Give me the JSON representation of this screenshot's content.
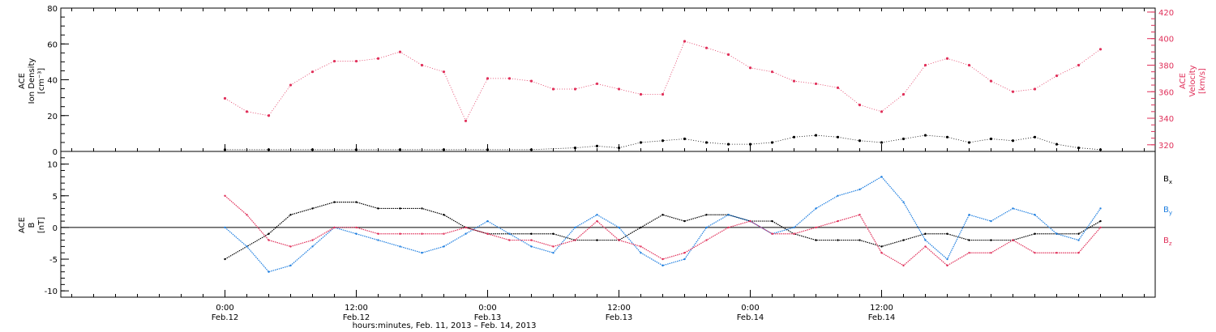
{
  "chart_data": [
    {
      "type": "scatter",
      "panel": "top",
      "ylabel_left": [
        "ACE",
        "Ion Density",
        "[cm⁻³]"
      ],
      "ylabel_right": [
        "ACE",
        "Velocity",
        "[km/s]"
      ],
      "ylim_left": [
        0,
        80
      ],
      "ylim_right": [
        315,
        423
      ],
      "yticks_left": [
        "0",
        "20",
        "40",
        "60",
        "80"
      ],
      "yticks_right": [
        "320",
        "340",
        "360",
        "380",
        "400",
        "420"
      ],
      "series": [
        {
          "color": "#000000",
          "axis": "left",
          "x": [
            0,
            4,
            8,
            12,
            16,
            20,
            24,
            28,
            32,
            34,
            36,
            38,
            40,
            42,
            44,
            46,
            48,
            50,
            52,
            54,
            56,
            58,
            60,
            62,
            64,
            66,
            68,
            70,
            72,
            74,
            76,
            78,
            80
          ],
          "values": [
            1,
            1,
            1,
            1,
            1,
            1,
            1,
            1,
            2,
            3,
            2,
            5,
            6,
            7,
            5,
            4,
            4,
            5,
            8,
            9,
            8,
            6,
            5,
            7,
            9,
            8,
            5,
            7,
            6,
            8,
            4,
            2,
            1
          ]
        },
        {
          "color": "#e0305a",
          "axis": "right",
          "x": [
            0,
            2,
            4,
            6,
            8,
            10,
            12,
            14,
            16,
            18,
            20,
            22,
            24,
            26,
            28,
            30,
            32,
            34,
            36,
            38,
            40,
            42,
            44,
            46,
            48,
            50,
            52,
            54,
            56,
            58,
            60,
            62,
            64,
            66,
            68,
            70,
            72,
            74,
            76,
            78,
            80
          ],
          "values": [
            355,
            345,
            342,
            365,
            375,
            383,
            383,
            385,
            390,
            380,
            375,
            338,
            370,
            370,
            368,
            362,
            362,
            366,
            362,
            358,
            358,
            398,
            393,
            388,
            378,
            375,
            368,
            366,
            363,
            350,
            345,
            358,
            380,
            385,
            380,
            368,
            360,
            362,
            372,
            380,
            392
          ]
        }
      ]
    },
    {
      "type": "line",
      "panel": "bottom",
      "ylabel": [
        "ACE",
        "B",
        "[nT]"
      ],
      "ylim": [
        -11,
        12
      ],
      "yticks": [
        "-10",
        "-5",
        "0",
        "5",
        "10"
      ],
      "series": [
        {
          "name": "Bx",
          "name_main": "B",
          "name_sub": "x",
          "color": "#000000",
          "x": [
            0,
            2,
            4,
            6,
            8,
            10,
            12,
            14,
            16,
            18,
            20,
            22,
            24,
            26,
            28,
            30,
            32,
            34,
            36,
            38,
            40,
            42,
            44,
            46,
            48,
            50,
            52,
            54,
            56,
            58,
            60,
            62,
            64,
            66,
            68,
            70,
            72,
            74,
            76,
            78,
            80
          ],
          "values": [
            -5,
            -3,
            -1,
            2,
            3,
            4,
            4,
            3,
            3,
            3,
            2,
            0,
            -1,
            -1,
            -1,
            -1,
            -2,
            -2,
            -2,
            0,
            2,
            1,
            2,
            2,
            1,
            1,
            -1,
            -2,
            -2,
            -2,
            -3,
            -2,
            -1,
            -1,
            -2,
            -2,
            -2,
            -1,
            -1,
            -1,
            1
          ]
        },
        {
          "name": "By",
          "name_main": "B",
          "name_sub": "y",
          "color": "#1f7fe0",
          "x": [
            0,
            2,
            4,
            6,
            8,
            10,
            12,
            14,
            16,
            18,
            20,
            22,
            24,
            26,
            28,
            30,
            32,
            34,
            36,
            38,
            40,
            42,
            44,
            46,
            48,
            50,
            52,
            54,
            56,
            58,
            60,
            62,
            64,
            66,
            68,
            70,
            72,
            74,
            76,
            78,
            80
          ],
          "values": [
            0,
            -3,
            -7,
            -6,
            -3,
            0,
            -1,
            -2,
            -3,
            -4,
            -3,
            -1,
            1,
            -1,
            -3,
            -4,
            0,
            2,
            0,
            -4,
            -6,
            -5,
            0,
            2,
            1,
            -1,
            0,
            3,
            5,
            6,
            8,
            4,
            -2,
            -5,
            2,
            1,
            3,
            2,
            -1,
            -2,
            3
          ]
        },
        {
          "name": "Bz",
          "name_main": "B",
          "name_sub": "z",
          "color": "#e0305a",
          "x": [
            0,
            2,
            4,
            6,
            8,
            10,
            12,
            14,
            16,
            18,
            20,
            22,
            24,
            26,
            28,
            30,
            32,
            34,
            36,
            38,
            40,
            42,
            44,
            46,
            48,
            50,
            52,
            54,
            56,
            58,
            60,
            62,
            64,
            66,
            68,
            70,
            72,
            74,
            76,
            78,
            80
          ],
          "values": [
            5,
            2,
            -2,
            -3,
            -2,
            0,
            0,
            -1,
            -1,
            -1,
            -1,
            0,
            -1,
            -2,
            -2,
            -3,
            -2,
            1,
            -2,
            -3,
            -5,
            -4,
            -2,
            0,
            1,
            -1,
            -1,
            0,
            1,
            2,
            -4,
            -6,
            -3,
            -6,
            -4,
            -4,
            -2,
            -4,
            -4,
            -4,
            0
          ]
        }
      ]
    }
  ],
  "xaxis": {
    "range_hours": [
      -15,
      85
    ],
    "ticks": [
      {
        "hour": 0,
        "time": "0:00",
        "date": "Feb.12"
      },
      {
        "hour": 12,
        "time": "12:00",
        "date": "Feb.12"
      },
      {
        "hour": 24,
        "time": "0:00",
        "date": "Feb.13"
      },
      {
        "hour": 36,
        "time": "12:00",
        "date": "Feb.13"
      },
      {
        "hour": 48,
        "time": "0:00",
        "date": "Feb.14"
      },
      {
        "hour": 60,
        "time": "12:00",
        "date": "Feb.14"
      }
    ],
    "label": "hours:minutes, Feb. 11, 2013 – Feb. 14, 2013"
  }
}
